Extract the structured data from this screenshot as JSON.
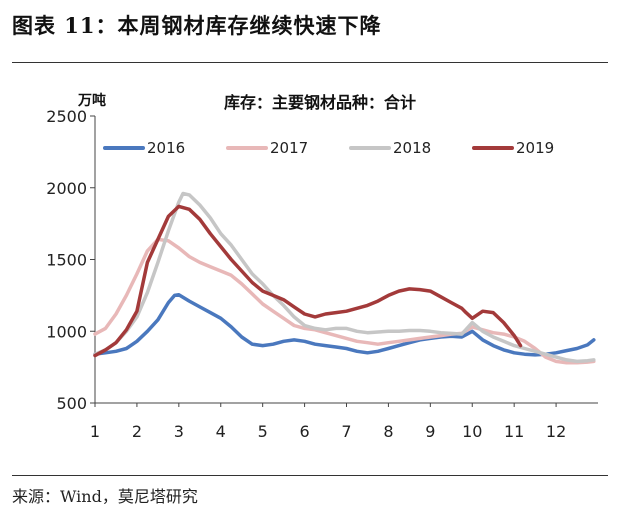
{
  "figure_title": "图表 11：本周钢材库存继续快速下降",
  "source_note": "来源：Wind，莫尼塔研究",
  "chart_data": {
    "type": "line",
    "title": "库存：主要钢材品种：合计",
    "ylabel": "万吨",
    "xlabel": "",
    "ylim": [
      500,
      2500
    ],
    "yticks": [
      500,
      1000,
      1500,
      2000,
      2500
    ],
    "xlim": [
      1,
      13
    ],
    "xticks": [
      "1",
      "2",
      "3",
      "4",
      "5",
      "6",
      "7",
      "8",
      "9",
      "10",
      "11",
      "12"
    ],
    "grid": false,
    "legend_position": "top",
    "series": [
      {
        "name": "2016",
        "color": "#4a78be",
        "x": [
          1.0,
          1.25,
          1.5,
          1.75,
          2.0,
          2.25,
          2.5,
          2.75,
          2.9,
          3.0,
          3.25,
          3.5,
          3.75,
          4.0,
          4.25,
          4.5,
          4.75,
          5.0,
          5.25,
          5.5,
          5.75,
          6.0,
          6.25,
          6.5,
          6.75,
          7.0,
          7.25,
          7.5,
          7.75,
          8.0,
          8.25,
          8.5,
          8.75,
          9.0,
          9.25,
          9.5,
          9.75,
          10.0,
          10.25,
          10.5,
          10.75,
          11.0,
          11.25,
          11.5,
          11.75,
          12.0,
          12.25,
          12.5,
          12.75,
          12.9
        ],
        "values": [
          840,
          850,
          860,
          880,
          930,
          1000,
          1080,
          1200,
          1250,
          1255,
          1210,
          1170,
          1130,
          1090,
          1030,
          960,
          910,
          900,
          910,
          930,
          940,
          930,
          910,
          900,
          890,
          880,
          860,
          850,
          860,
          880,
          900,
          920,
          940,
          950,
          960,
          965,
          960,
          1000,
          940,
          900,
          870,
          850,
          840,
          835,
          840,
          850,
          865,
          880,
          905,
          940
        ]
      },
      {
        "name": "2017",
        "color": "#e8b8b8",
        "x": [
          1.0,
          1.25,
          1.5,
          1.75,
          2.0,
          2.25,
          2.5,
          2.75,
          3.0,
          3.25,
          3.5,
          3.75,
          4.0,
          4.25,
          4.5,
          4.75,
          5.0,
          5.25,
          5.5,
          5.75,
          6.0,
          6.25,
          6.5,
          6.75,
          7.0,
          7.25,
          7.5,
          7.75,
          8.0,
          8.25,
          8.5,
          8.75,
          9.0,
          9.25,
          9.5,
          9.75,
          10.0,
          10.25,
          10.5,
          10.75,
          11.0,
          11.25,
          11.5,
          11.75,
          12.0,
          12.25,
          12.5,
          12.75,
          12.9
        ],
        "values": [
          980,
          1020,
          1120,
          1250,
          1400,
          1560,
          1640,
          1630,
          1580,
          1520,
          1480,
          1450,
          1420,
          1390,
          1330,
          1260,
          1190,
          1140,
          1090,
          1040,
          1020,
          1010,
          990,
          970,
          950,
          930,
          920,
          910,
          920,
          930,
          940,
          950,
          960,
          970,
          980,
          985,
          1030,
          1010,
          990,
          980,
          960,
          930,
          880,
          820,
          790,
          780,
          780,
          785,
          790
        ]
      },
      {
        "name": "2018",
        "color": "#c6c6c6",
        "x": [
          1.0,
          1.25,
          1.5,
          1.75,
          2.0,
          2.25,
          2.5,
          2.75,
          3.0,
          3.1,
          3.25,
          3.5,
          3.75,
          4.0,
          4.25,
          4.5,
          4.75,
          5.0,
          5.25,
          5.5,
          5.75,
          6.0,
          6.25,
          6.5,
          6.75,
          7.0,
          7.25,
          7.5,
          7.75,
          8.0,
          8.25,
          8.5,
          8.75,
          9.0,
          9.25,
          9.5,
          9.75,
          10.0,
          10.25,
          10.5,
          10.75,
          11.0,
          11.25,
          11.5,
          11.75,
          12.0,
          12.25,
          12.5,
          12.75,
          12.9
        ],
        "values": [
          840,
          870,
          920,
          1000,
          1100,
          1270,
          1480,
          1700,
          1900,
          1960,
          1950,
          1880,
          1790,
          1680,
          1600,
          1500,
          1400,
          1330,
          1250,
          1180,
          1100,
          1040,
          1020,
          1010,
          1020,
          1020,
          1000,
          990,
          995,
          1000,
          1000,
          1005,
          1005,
          1000,
          990,
          985,
          980,
          1060,
          1000,
          960,
          930,
          900,
          880,
          860,
          840,
          820,
          800,
          790,
          795,
          800
        ]
      },
      {
        "name": "2019",
        "color": "#a33a3a",
        "x": [
          1.0,
          1.25,
          1.5,
          1.75,
          2.0,
          2.25,
          2.5,
          2.75,
          3.0,
          3.25,
          3.5,
          3.75,
          4.0,
          4.25,
          4.5,
          4.75,
          5.0,
          5.25,
          5.5,
          5.75,
          6.0,
          6.25,
          6.5,
          6.75,
          7.0,
          7.25,
          7.5,
          7.75,
          8.0,
          8.25,
          8.5,
          8.75,
          9.0,
          9.25,
          9.5,
          9.75,
          9.85,
          10.0,
          10.25,
          10.5,
          10.75,
          11.0,
          11.15
        ],
        "values": [
          830,
          870,
          920,
          1010,
          1140,
          1480,
          1640,
          1800,
          1870,
          1850,
          1780,
          1680,
          1590,
          1500,
          1420,
          1340,
          1280,
          1250,
          1220,
          1170,
          1120,
          1100,
          1120,
          1130,
          1140,
          1160,
          1180,
          1210,
          1250,
          1280,
          1295,
          1290,
          1280,
          1240,
          1200,
          1160,
          1130,
          1090,
          1140,
          1130,
          1060,
          970,
          900
        ]
      }
    ]
  }
}
